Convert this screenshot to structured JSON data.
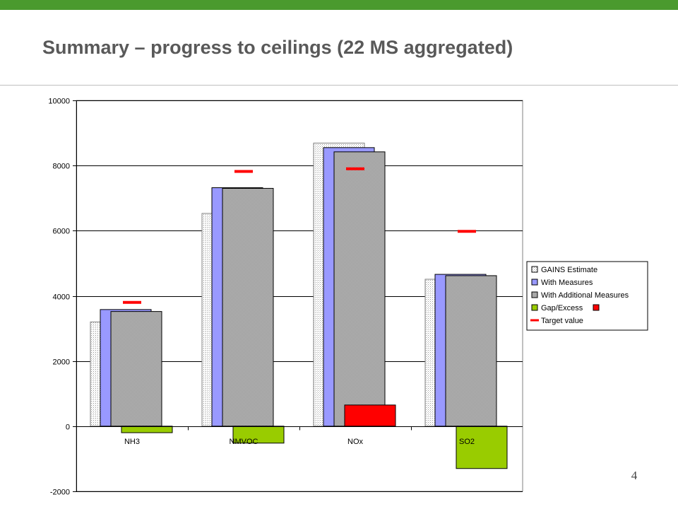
{
  "slide": {
    "title": "Summary – progress to ceilings (22 MS aggregated)",
    "page_number": "4"
  },
  "colors": {
    "brand_bar": "#4a9a2e",
    "title_text": "#595959",
    "gains_estimate": "#f4f4f4",
    "with_measures": "#9999ff",
    "with_additional_measures": "#b2b2b2",
    "gap_deficit": "#99cc00",
    "gap_excess": "#ff0000",
    "target_value": "#ff0000"
  },
  "chart_data": {
    "type": "bar",
    "categories": [
      "NH3",
      "NMVOC",
      "NOx",
      "SO2"
    ],
    "ylim": [
      -2000,
      10000
    ],
    "yticks": [
      -2000,
      0,
      2000,
      4000,
      6000,
      8000,
      10000
    ],
    "ytick_labels": [
      "-2000",
      "0",
      "2000",
      "4000",
      "6000",
      "8000",
      "10000"
    ],
    "grid": true,
    "legend_position": "right",
    "series": [
      {
        "name": "GAINS Estimate",
        "values": [
          3200,
          6530,
          8690,
          4510
        ]
      },
      {
        "name": "With Measures",
        "values": [
          3580,
          7320,
          8550,
          4660
        ]
      },
      {
        "name": "With Additional Measures",
        "values": [
          3520,
          7300,
          8420,
          4620
        ]
      },
      {
        "name": "Gap/Excess",
        "values": [
          -200,
          -520,
          650,
          -1300
        ]
      }
    ],
    "target": {
      "name": "Target value",
      "values": [
        3800,
        7820,
        7900,
        5980
      ]
    }
  }
}
